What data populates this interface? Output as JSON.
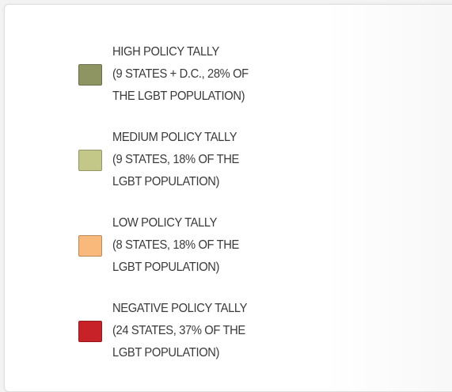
{
  "legend": {
    "items": [
      {
        "color": "#8e9563",
        "lines": [
          "HIGH POLICY TALLY",
          "(9 STATES + D.C., 28% OF",
          "THE LGBT POPULATION)"
        ]
      },
      {
        "color": "#c3c787",
        "lines": [
          "MEDIUM POLICY TALLY",
          "(9 STATES, 18% OF THE",
          "LGBT POPULATION)"
        ]
      },
      {
        "color": "#f9b97a",
        "lines": [
          "LOW POLICY TALLY",
          "(8 STATES, 18% OF THE",
          "LGBT POPULATION)"
        ]
      },
      {
        "color": "#c62228",
        "lines": [
          "NEGATIVE POLICY TALLY",
          "(24 STATES, 37% OF THE",
          "LGBT POPULATION)"
        ]
      }
    ]
  }
}
